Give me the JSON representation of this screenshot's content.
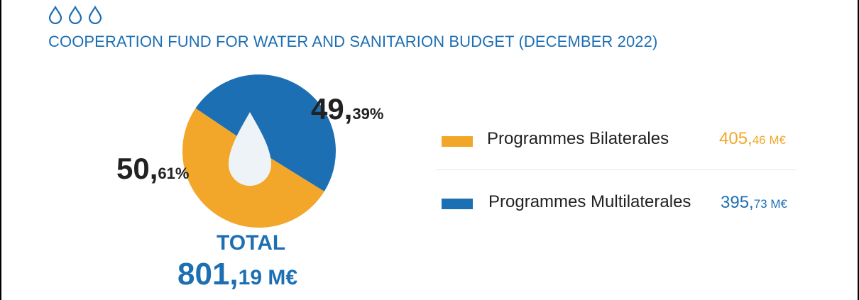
{
  "title": "COOPERATION FUND FOR WATER AND SANITARION BUDGET (DECEMBER 2022)",
  "colors": {
    "blue": "#1d6fb3",
    "orange": "#f2a72a",
    "drop": "#eef3f8",
    "text": "#222222"
  },
  "icons": {
    "header": "three-water-drops-icon",
    "center": "water-drop-icon"
  },
  "total": {
    "label": "TOTAL",
    "value_int": "801,",
    "value_dec": "19 M€"
  },
  "chart_data": {
    "type": "pie",
    "title": "COOPERATION FUND FOR WATER AND SANITARION BUDGET (DECEMBER 2022)",
    "series": [
      {
        "name": "Programmes Bilaterales",
        "percent": 50.61,
        "pct_int": "50,",
        "pct_dec": "61%",
        "value": 405.46,
        "value_int": "405,",
        "value_dec": "46 M€",
        "color": "#f2a72a"
      },
      {
        "name": "Programmes Multilaterales",
        "percent": 49.39,
        "pct_int": "49,",
        "pct_dec": "39%",
        "value": 395.73,
        "value_int": "395,",
        "value_dec": "73 M€",
        "color": "#1d6fb3"
      }
    ],
    "unit": "M€",
    "legend_placement": "right"
  }
}
